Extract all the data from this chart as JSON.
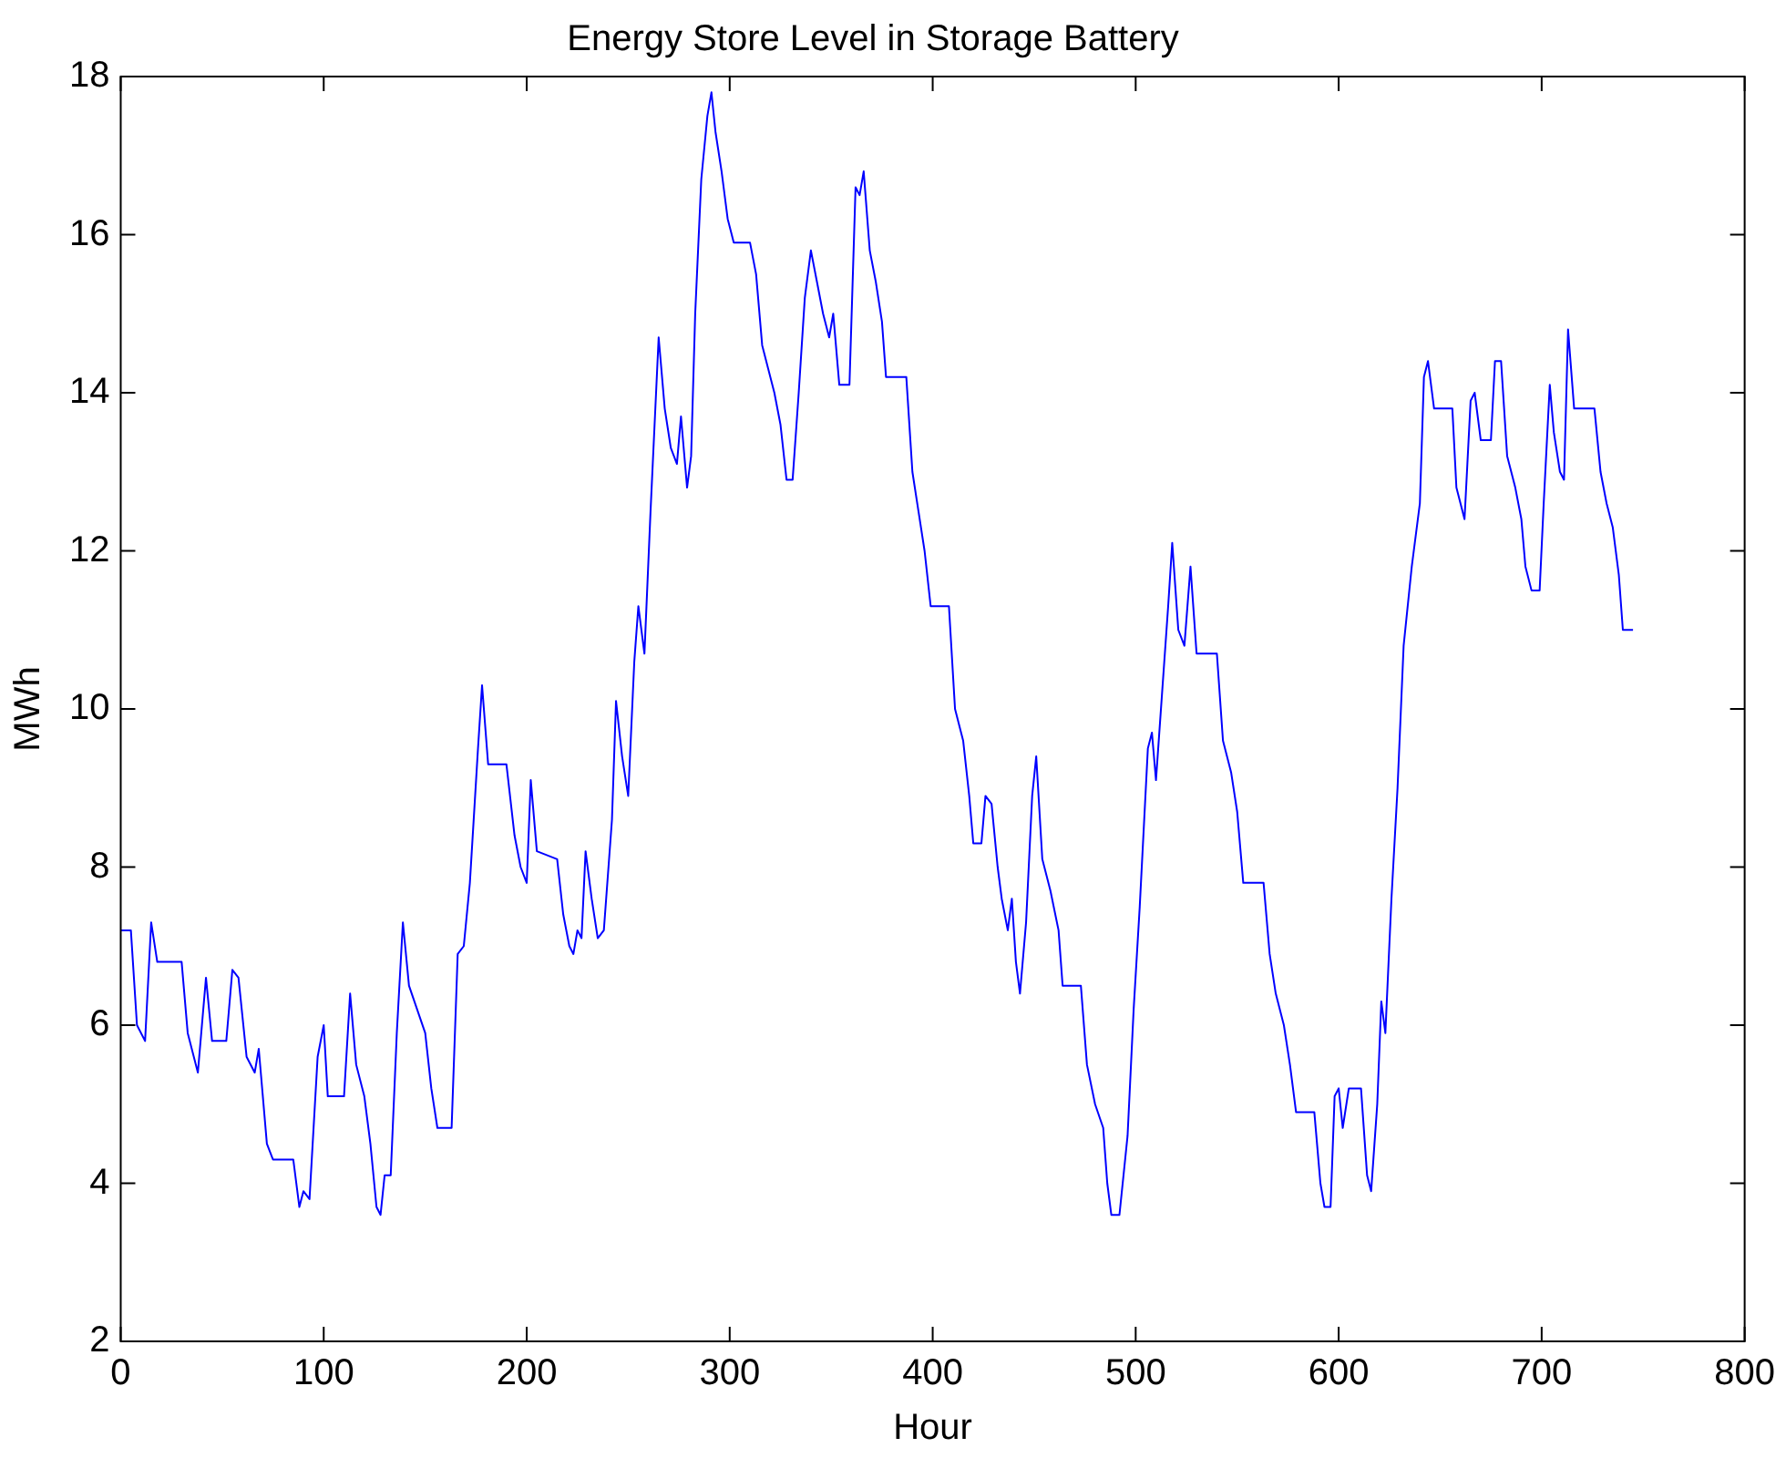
{
  "chart_data": {
    "type": "line",
    "title": "Energy Store Level in Storage Battery",
    "xlabel": "Hour",
    "ylabel": "MWh",
    "xlim": [
      0,
      800
    ],
    "xticks": [
      0,
      100,
      200,
      300,
      400,
      500,
      600,
      700,
      800
    ],
    "ylim": [
      2,
      18
    ],
    "yticks": [
      2,
      4,
      6,
      8,
      10,
      12,
      14,
      16,
      18
    ],
    "grid": false,
    "legend": false,
    "marker": "none",
    "line_style": "solid",
    "series": [
      {
        "color": "#0000ff",
        "x": [
          0,
          5,
          8,
          12,
          15,
          18,
          30,
          33,
          38,
          42,
          45,
          52,
          55,
          58,
          62,
          66,
          68,
          72,
          75,
          85,
          88,
          90,
          93,
          97,
          100,
          102,
          110,
          113,
          116,
          120,
          123,
          126,
          128,
          130,
          133,
          136,
          139,
          142,
          146,
          150,
          153,
          156,
          163,
          166,
          169,
          172,
          176,
          178,
          181,
          190,
          194,
          197,
          200,
          202,
          205,
          215,
          218,
          221,
          223,
          225,
          227,
          229,
          232,
          235,
          238,
          242,
          244,
          247,
          250,
          253,
          255,
          258,
          261,
          263,
          265,
          268,
          271,
          274,
          276,
          279,
          281,
          283,
          286,
          289,
          291,
          293,
          296,
          299,
          302,
          310,
          313,
          316,
          319,
          322,
          325,
          328,
          331,
          334,
          337,
          340,
          343,
          346,
          349,
          351,
          354,
          359,
          362,
          364,
          366,
          369,
          372,
          375,
          377,
          387,
          390,
          393,
          396,
          399,
          408,
          411,
          415,
          418,
          420,
          424,
          426,
          429,
          432,
          434,
          437,
          439,
          441,
          443,
          446,
          449,
          451,
          454,
          458,
          462,
          464,
          473,
          476,
          480,
          484,
          486,
          488,
          492,
          496,
          499,
          502,
          506,
          508,
          510,
          513,
          516,
          518,
          521,
          524,
          527,
          530,
          540,
          543,
          547,
          550,
          553,
          563,
          566,
          569,
          573,
          576,
          579,
          588,
          591,
          593,
          596,
          598,
          600,
          602,
          605,
          611,
          614,
          616,
          619,
          621,
          623,
          626,
          629,
          632,
          636,
          640,
          642,
          644,
          647,
          656,
          658,
          662,
          665,
          667,
          670,
          675,
          677,
          680,
          683,
          687,
          690,
          692,
          695,
          699,
          701,
          704,
          706,
          709,
          711,
          713,
          716,
          726,
          729,
          732,
          735,
          738,
          740,
          745
        ],
        "values": [
          7.2,
          7.2,
          6,
          5.8,
          7.3,
          6.8,
          6.8,
          5.9,
          5.4,
          6.6,
          5.8,
          5.8,
          6.7,
          6.6,
          5.6,
          5.4,
          5.7,
          4.5,
          4.3,
          4.3,
          3.7,
          3.9,
          3.8,
          5.6,
          6.0,
          5.1,
          5.1,
          6.4,
          5.5,
          5.1,
          4.5,
          3.7,
          3.6,
          4.1,
          4.1,
          5.9,
          7.3,
          6.5,
          6.2,
          5.9,
          5.2,
          4.7,
          4.7,
          6.9,
          7.0,
          7.8,
          9.5,
          10.3,
          9.3,
          9.3,
          8.4,
          8.0,
          7.8,
          9.1,
          8.2,
          8.1,
          7.4,
          7.0,
          6.9,
          7.2,
          7.1,
          8.2,
          7.6,
          7.1,
          7.2,
          8.6,
          10.1,
          9.4,
          8.9,
          10.6,
          11.3,
          10.7,
          12.5,
          13.6,
          14.7,
          13.8,
          13.3,
          13.1,
          13.7,
          12.8,
          13.2,
          15,
          16.7,
          17.5,
          17.8,
          17.3,
          16.8,
          16.2,
          15.9,
          15.9,
          15.5,
          14.6,
          14.3,
          14.0,
          13.6,
          12.9,
          12.9,
          14.0,
          15.2,
          15.8,
          15.4,
          15.0,
          14.7,
          15.0,
          14.1,
          14.1,
          16.6,
          16.5,
          16.8,
          15.8,
          15.4,
          14.9,
          14.2,
          14.2,
          13.0,
          12.5,
          12.0,
          11.3,
          11.3,
          10.0,
          9.6,
          8.9,
          8.3,
          8.3,
          8.9,
          8.8,
          8.0,
          7.6,
          7.2,
          7.6,
          6.8,
          6.4,
          7.3,
          8.9,
          9.4,
          8.1,
          7.7,
          7.2,
          6.5,
          6.5,
          5.5,
          5.0,
          4.7,
          4.0,
          3.6,
          3.6,
          4.6,
          6.2,
          7.5,
          9.5,
          9.7,
          9.1,
          10.2,
          11.3,
          12.1,
          11.0,
          10.8,
          11.8,
          10.7,
          10.7,
          9.6,
          9.2,
          8.7,
          7.8,
          7.8,
          6.9,
          6.4,
          6.0,
          5.5,
          4.9,
          4.9,
          4.0,
          3.7,
          3.7,
          5.1,
          5.2,
          4.7,
          5.2,
          5.2,
          4.1,
          3.9,
          5.0,
          6.3,
          5.9,
          7.6,
          9.0,
          10.8,
          11.8,
          12.6,
          14.2,
          14.4,
          13.8,
          13.8,
          12.8,
          12.4,
          13.9,
          14.0,
          13.4,
          13.4,
          14.4,
          14.4,
          13.2,
          12.8,
          12.4,
          11.8,
          11.5,
          11.5,
          12.6,
          14.1,
          13.5,
          13.0,
          12.9,
          14.8,
          13.8,
          13.8,
          13.0,
          12.6,
          12.3,
          11.7,
          11.0,
          11.0
        ]
      }
    ]
  }
}
